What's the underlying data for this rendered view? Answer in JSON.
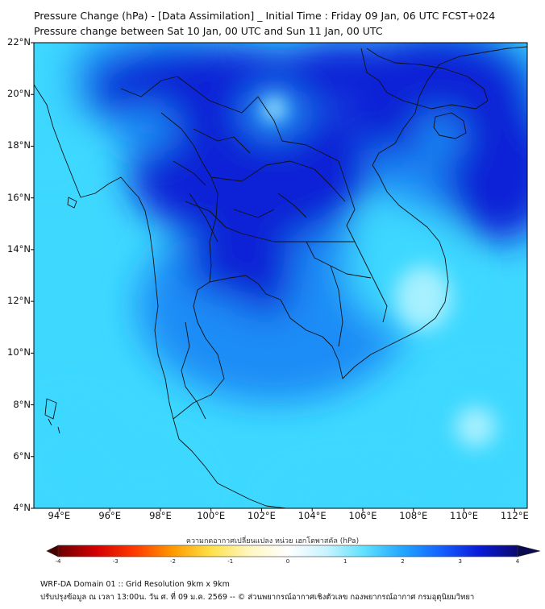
{
  "header": {
    "title": "Pressure Change (hPa) - [Data Assimilation] _ Initial Time : Friday 09 Jan, 06 UTC FCST+024",
    "subtitle": "Pressure change between Sat 10 Jan, 00 UTC and Sun 11 Jan, 00 UTC"
  },
  "map": {
    "lat_labels": [
      "22°N",
      "20°N",
      "18°N",
      "16°N",
      "14°N",
      "12°N",
      "10°N",
      "8°N",
      "6°N",
      "4°N"
    ],
    "lon_labels": [
      "94°E",
      "96°E",
      "98°E",
      "100°E",
      "102°E",
      "104°E",
      "106°E",
      "108°E",
      "110°E",
      "112°E"
    ],
    "lat_range": [
      4,
      22
    ],
    "lon_range": [
      93,
      112.5
    ],
    "field_colors": {
      "deep": "#0a22d6",
      "mid": "#1e8cf6",
      "light": "#3ed8ff",
      "pale": "#a6f0ff"
    }
  },
  "colorbar": {
    "label": "ความกดอากาศเปลี่ยนแปลง หน่วย เฮกโตพาสคัล (hPa)",
    "ticks": [
      "-4",
      "-3",
      "-2",
      "-1",
      "0",
      "1",
      "2",
      "3",
      "4"
    ],
    "range": [
      -4,
      4
    ],
    "colors": [
      "#6b0000",
      "#d40000",
      "#ff3a00",
      "#ff9a00",
      "#ffe14a",
      "#fff7c0",
      "#ffffff",
      "#c8f4ff",
      "#5fe0ff",
      "#22a6ff",
      "#1460ff",
      "#0a1ad8",
      "#0a0a70"
    ]
  },
  "footer": {
    "line1": "WRF-DA Domain 01 :: Grid Resolution 9km x 9km",
    "line2": "ปรับปรุงข้อมูล ณ เวลา 13:00น. วัน ศ. ที่ 09 ม.ค. 2569 -- © ส่วนพยากรณ์อากาศเชิงตัวเลข กองพยากรณ์อากาศ กรมอุตุนิยมวิทยา"
  }
}
